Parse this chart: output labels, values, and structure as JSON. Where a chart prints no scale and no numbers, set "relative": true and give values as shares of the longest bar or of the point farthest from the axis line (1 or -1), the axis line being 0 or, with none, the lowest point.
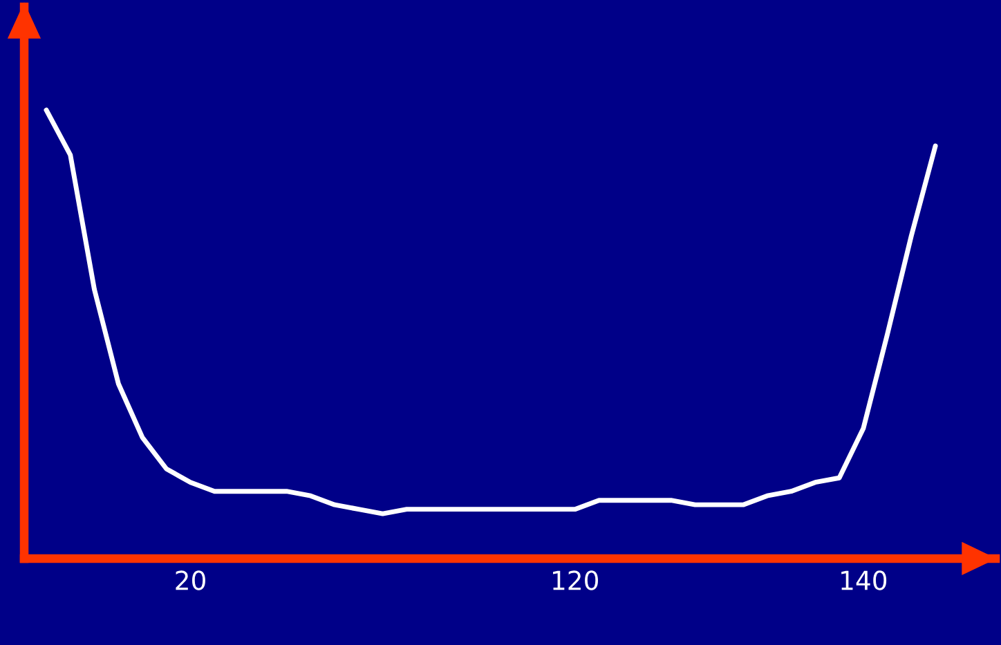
{
  "chart_data": {
    "type": "line",
    "relative": true,
    "categories": [
      null,
      null,
      null,
      null,
      null,
      null,
      "20",
      null,
      null,
      null,
      null,
      null,
      null,
      null,
      null,
      null,
      null,
      null,
      null,
      null,
      null,
      null,
      "120",
      null,
      null,
      null,
      null,
      null,
      null,
      null,
      null,
      null,
      null,
      null,
      "140",
      null,
      null,
      null
    ],
    "series": [
      {
        "color": "#ffffff",
        "values": [
          1.0,
          0.9,
          0.6,
          0.39,
          0.27,
          0.2,
          0.17,
          0.15,
          0.15,
          0.15,
          0.15,
          0.14,
          0.12,
          0.11,
          0.1,
          0.11,
          0.11,
          0.11,
          0.11,
          0.11,
          0.11,
          0.11,
          0.11,
          0.13,
          0.13,
          0.13,
          0.13,
          0.12,
          0.12,
          0.12,
          0.14,
          0.15,
          0.17,
          0.18,
          0.29,
          0.5,
          0.72,
          0.92
        ]
      }
    ],
    "grid": false,
    "marker": "none",
    "line_style": "solid"
  }
}
